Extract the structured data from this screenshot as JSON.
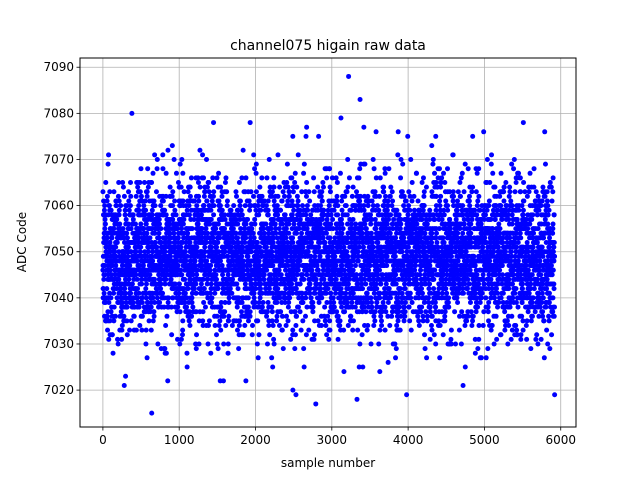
{
  "chart_data": {
    "type": "scatter",
    "title": "channel075 higain raw data",
    "xlabel": "sample number",
    "ylabel": "ADC Code",
    "xlim": [
      -300,
      6200
    ],
    "ylim": [
      7012,
      7092
    ],
    "xticks": [
      0,
      1000,
      2000,
      3000,
      4000,
      5000,
      6000
    ],
    "yticks": [
      7020,
      7030,
      7040,
      7050,
      7060,
      7070,
      7080,
      7090
    ],
    "grid": true,
    "marker_color": "#0000ff",
    "series": [
      {
        "n_points": 5920,
        "x_range": [
          0,
          5919
        ],
        "central_band": [
          7033,
          7062
        ],
        "typical_mean": 7049,
        "typical_spread": 8,
        "outliers": [
          {
            "x": 380,
            "y": 7080
          },
          {
            "x": 640,
            "y": 7015
          },
          {
            "x": 1450,
            "y": 7078
          },
          {
            "x": 1930,
            "y": 7078
          },
          {
            "x": 2670,
            "y": 7077
          },
          {
            "x": 2790,
            "y": 7017
          },
          {
            "x": 3120,
            "y": 7079
          },
          {
            "x": 3220,
            "y": 7088
          },
          {
            "x": 3370,
            "y": 7083
          },
          {
            "x": 3330,
            "y": 7018
          },
          {
            "x": 3420,
            "y": 7077
          },
          {
            "x": 3580,
            "y": 7076
          },
          {
            "x": 3870,
            "y": 7076
          },
          {
            "x": 3980,
            "y": 7019
          },
          {
            "x": 4720,
            "y": 7021
          },
          {
            "x": 5510,
            "y": 7078
          },
          {
            "x": 5790,
            "y": 7076
          },
          {
            "x": 5920,
            "y": 7019
          },
          {
            "x": 280,
            "y": 7021
          },
          {
            "x": 2490,
            "y": 7020
          },
          {
            "x": 2530,
            "y": 7019
          },
          {
            "x": 1580,
            "y": 7022
          },
          {
            "x": 850,
            "y": 7022
          },
          {
            "x": 4990,
            "y": 7076
          }
        ]
      }
    ]
  }
}
